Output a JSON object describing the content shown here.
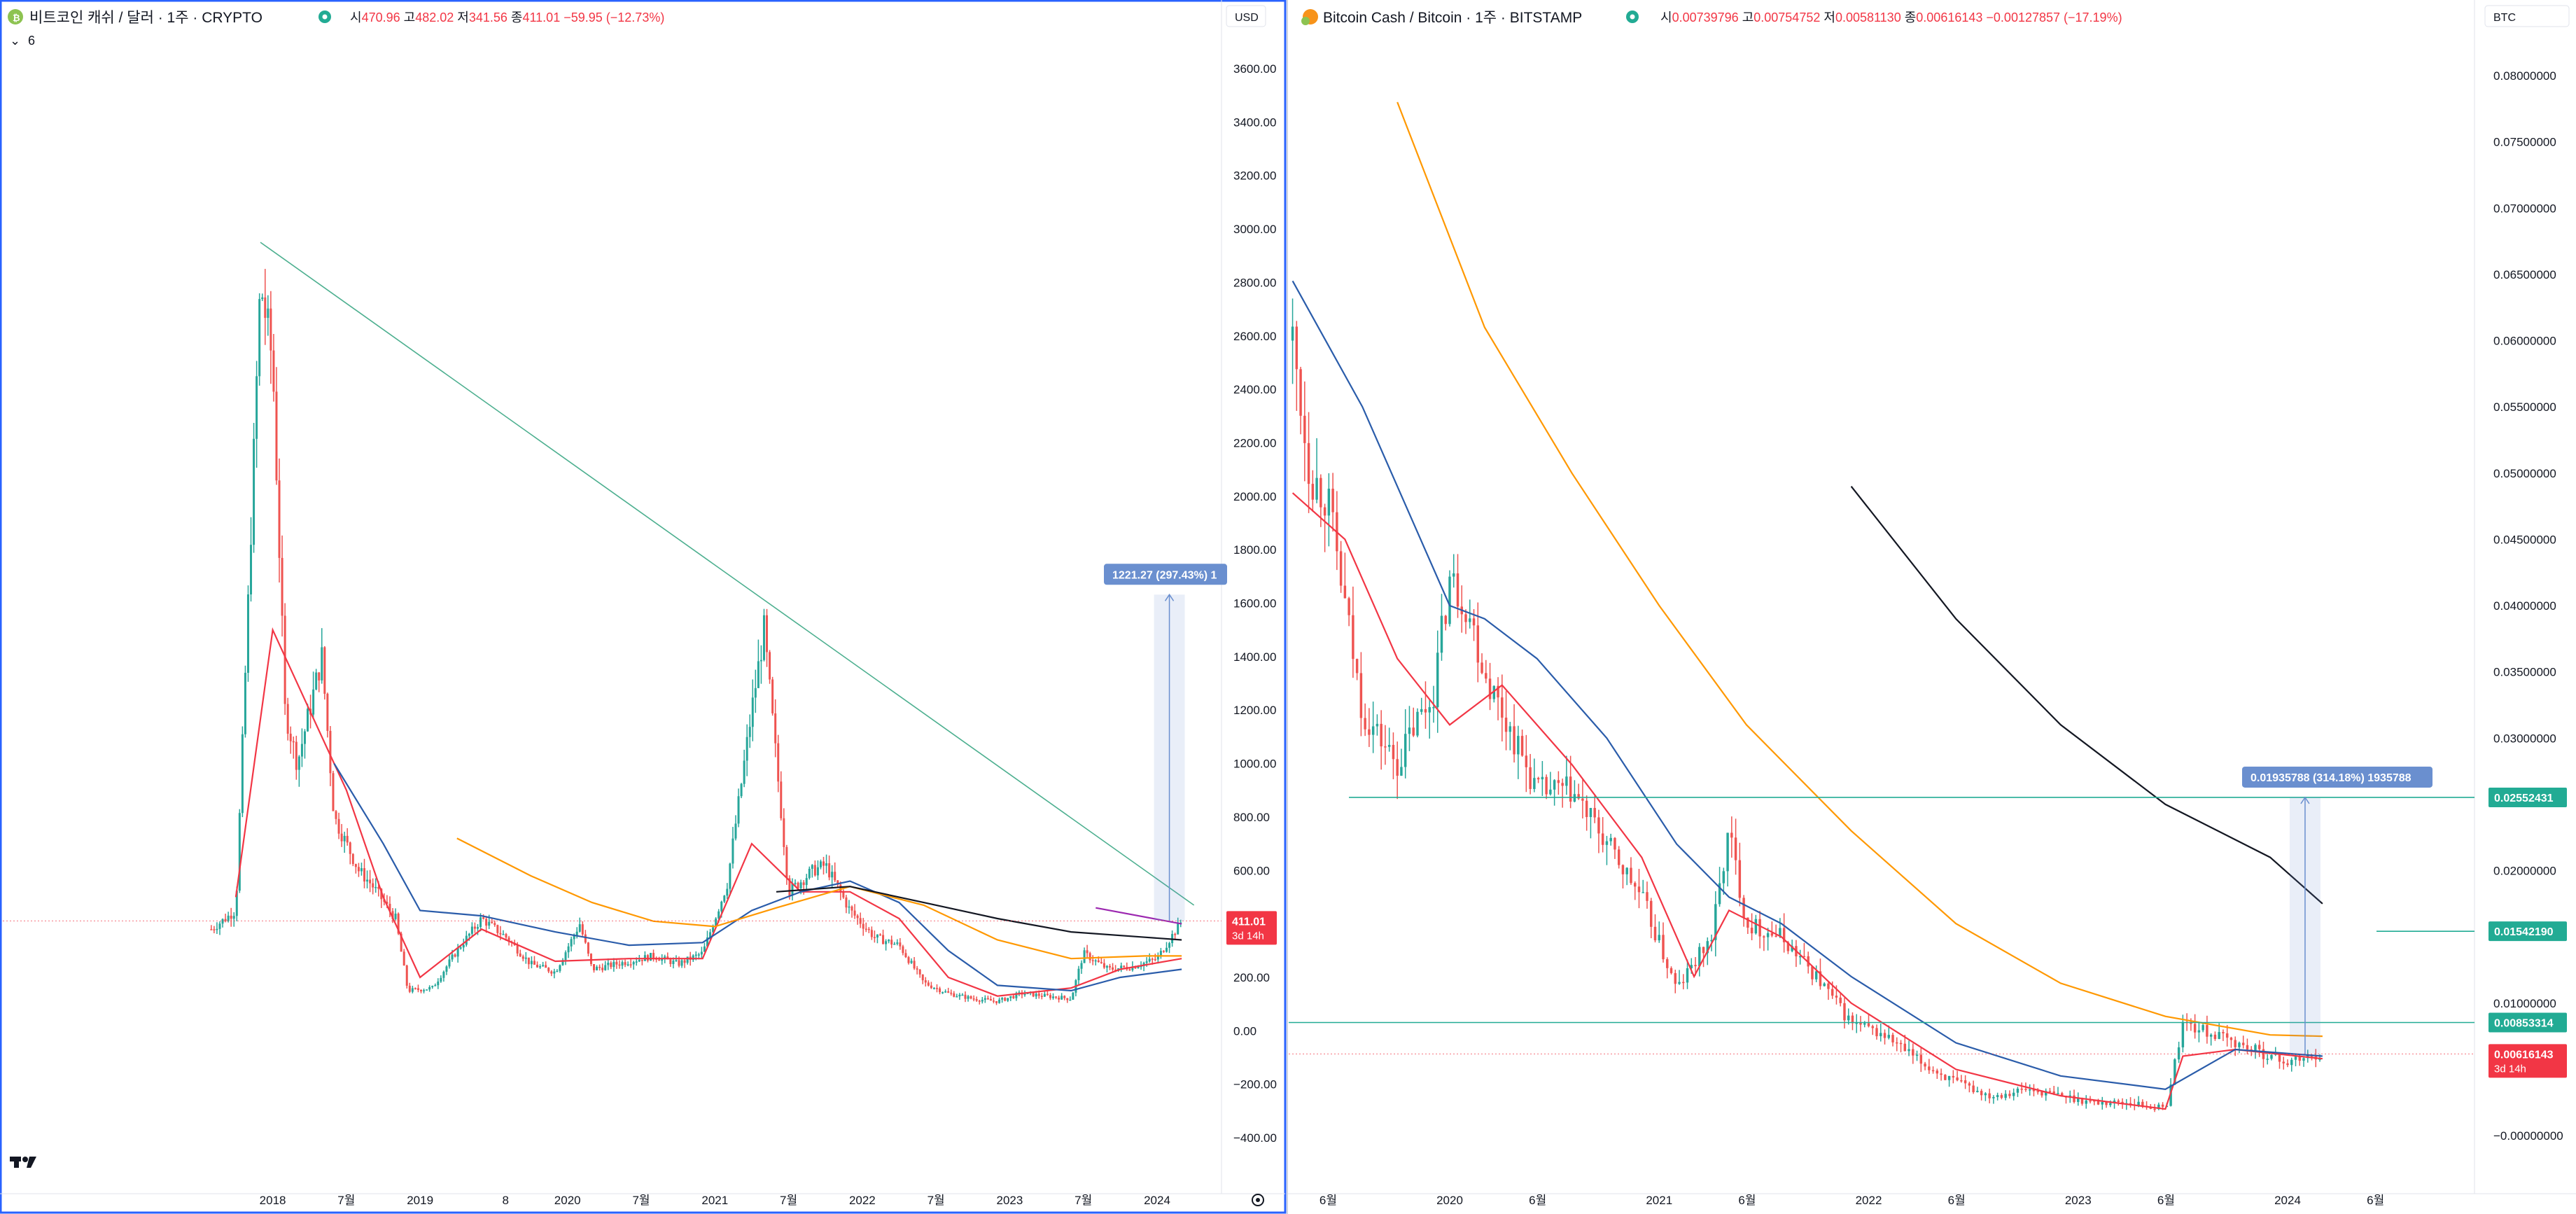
{
  "left_panel": {
    "symbol_title": "비트코인 캐쉬 / 달러 · 1주 · CRYPTO",
    "ohlc": {
      "o_label": "시",
      "o": "470.96",
      "h_label": "고",
      "h": "482.02",
      "l_label": "저",
      "l": "341.56",
      "c_label": "종",
      "c": "411.01",
      "change": "−59.95 (−12.73%)"
    },
    "indicator_count": "6",
    "currency": "USD",
    "last_price_badge": "411.01",
    "last_price_time": "3d 14h",
    "measure_label": "1221.27 (297.43%) 1"
  },
  "right_panel": {
    "symbol_title": "Bitcoin Cash / Bitcoin · 1주 · BITSTAMP",
    "ohlc": {
      "o_label": "시",
      "o": "0.00739796",
      "h_label": "고",
      "h": "0.00754752",
      "l_label": "저",
      "l": "0.00581130",
      "c_label": "종",
      "c": "0.00616143",
      "change": "−0.00127857 (−17.19%)"
    },
    "currency": "BTC",
    "last_price_badge": "0.00616143",
    "last_price_time": "3d 14h",
    "level_badges": [
      "0.02552431",
      "0.01542190",
      "0.00853314"
    ],
    "measure_label": "0.01935788 (314.18%) 1935788"
  },
  "colors": {
    "up": "#26a69a",
    "down": "#ef5350",
    "ma_red": "#f23645",
    "ma_blue": "#2a5caa",
    "ma_orange": "#ff9800",
    "ma_black": "#131722",
    "ma_purple": "#9c27b0",
    "trendline": "#4caf8f",
    "badge_red": "#f23645",
    "badge_green": "#22ab94",
    "measure": "#6a8fcf",
    "frame": "#2962ff"
  },
  "chart_data": [
    {
      "type": "candlestick",
      "title": "비트코인 캐쉬 / 달러 · 1주 · CRYPTO",
      "xlabel": "",
      "ylabel": "",
      "x_ticks": [
        "2018",
        "7월",
        "2019",
        "8",
        "2020",
        "7월",
        "2021",
        "7월",
        "2022",
        "7월",
        "2023",
        "7월",
        "2024"
      ],
      "y_ticks": [
        "3600.00",
        "3400.00",
        "3200.00",
        "3000.00",
        "2800.00",
        "2600.00",
        "2400.00",
        "2200.00",
        "2000.00",
        "1800.00",
        "1600.00",
        "1400.00",
        "1200.00",
        "1000.00",
        "800.00",
        "600.00",
        "200.00",
        "0.00",
        "−200.00",
        "−400.00"
      ],
      "ylim": [
        -500,
        3750
      ],
      "grid": false,
      "series": [
        {
          "name": "",
          "kind": "ohlc_close_path",
          "x": [
            "2017-08",
            "2017-10",
            "2017-11",
            "2017-12",
            "2018-01",
            "2018-02",
            "2018-03",
            "2018-05",
            "2018-06",
            "2018-08",
            "2018-09",
            "2018-11",
            "2018-12",
            "2019-02",
            "2019-04",
            "2019-06",
            "2019-08",
            "2019-10",
            "2019-12",
            "2020-02",
            "2020-03",
            "2020-05",
            "2020-08",
            "2020-10",
            "2020-12",
            "2021-02",
            "2021-04",
            "2021-05",
            "2021-07",
            "2021-09",
            "2021-10",
            "2021-12",
            "2022-02",
            "2022-04",
            "2022-06",
            "2022-08",
            "2022-10",
            "2022-12",
            "2023-02",
            "2023-04",
            "2023-06",
            "2023-07",
            "2023-09",
            "2023-11",
            "2024-01",
            "2024-03"
          ],
          "y": [
            380,
            450,
            1600,
            2800,
            2500,
            1200,
            1000,
            1400,
            800,
            600,
            550,
            420,
            150,
            160,
            300,
            420,
            350,
            250,
            220,
            400,
            230,
            250,
            280,
            250,
            290,
            550,
            1200,
            1500,
            520,
            600,
            620,
            450,
            350,
            320,
            180,
            140,
            120,
            110,
            140,
            130,
            120,
            290,
            230,
            240,
            270,
            411
          ]
        },
        {
          "name": "",
          "kind": "ma_red",
          "x": [
            "2017-10",
            "2018-01",
            "2018-04",
            "2018-07",
            "2018-10",
            "2019-01",
            "2019-06",
            "2019-12",
            "2020-06",
            "2020-12",
            "2021-04",
            "2021-08",
            "2021-12",
            "2022-04",
            "2022-08",
            "2022-12",
            "2023-06",
            "2023-10",
            "2024-03"
          ],
          "y": [
            500,
            1500,
            1200,
            900,
            500,
            200,
            380,
            260,
            270,
            270,
            700,
            520,
            520,
            420,
            200,
            130,
            160,
            230,
            270
          ]
        },
        {
          "name": "",
          "kind": "ma_blue",
          "x": [
            "2018-06",
            "2018-10",
            "2019-01",
            "2019-06",
            "2019-12",
            "2020-06",
            "2020-12",
            "2021-04",
            "2021-08",
            "2021-12",
            "2022-04",
            "2022-08",
            "2022-12",
            "2023-06",
            "2023-10",
            "2024-03"
          ],
          "y": [
            1000,
            700,
            450,
            430,
            370,
            320,
            330,
            450,
            520,
            560,
            480,
            300,
            170,
            150,
            200,
            230
          ]
        },
        {
          "name": "",
          "kind": "ma_orange",
          "x": [
            "2019-04",
            "2019-10",
            "2020-03",
            "2020-08",
            "2021-01",
            "2021-06",
            "2021-12",
            "2022-06",
            "2022-12",
            "2023-06",
            "2023-12",
            "2024-03"
          ],
          "y": [
            720,
            580,
            480,
            410,
            390,
            460,
            540,
            470,
            340,
            270,
            280,
            280
          ]
        },
        {
          "name": "",
          "kind": "ma_black",
          "x": [
            "2021-06",
            "2021-12",
            "2022-06",
            "2022-12",
            "2023-06",
            "2023-12",
            "2024-03"
          ],
          "y": [
            520,
            540,
            480,
            420,
            370,
            350,
            340
          ]
        },
        {
          "name": "",
          "kind": "ma_purple",
          "x": [
            "2023-08",
            "2024-03"
          ],
          "y": [
            460,
            400
          ]
        }
      ],
      "trendline": {
        "x": [
          "2017-12",
          "2024-04"
        ],
        "y": [
          2950,
          470
        ]
      },
      "measure": {
        "x": "2024-02",
        "y_from": 411,
        "y_to": 1632,
        "label": "1221.27 (297.43%) 1"
      },
      "last_price": 411.01
    },
    {
      "type": "candlestick",
      "title": "Bitcoin Cash / Bitcoin · 1주 · BITSTAMP",
      "xlabel": "",
      "ylabel": "",
      "x_ticks": [
        "6월",
        "2020",
        "6월",
        "2021",
        "6월",
        "2022",
        "6월",
        "2023",
        "6월",
        "2024",
        "6월"
      ],
      "y_ticks": [
        "0.08000000",
        "0.07500000",
        "0.07000000",
        "0.06500000",
        "0.06000000",
        "0.05500000",
        "0.05000000",
        "0.04500000",
        "0.04000000",
        "0.03500000",
        "0.03000000",
        "0.02000000",
        "0.01000000",
        "−0.00000000"
      ],
      "ylim": [
        -0.0015,
        0.082
      ],
      "grid": false,
      "series": [
        {
          "name": "",
          "kind": "ohlc_close_path",
          "x": [
            "2019-04",
            "2019-05",
            "2019-06",
            "2019-07",
            "2019-08",
            "2019-09",
            "2019-10",
            "2019-11",
            "2019-12",
            "2020-01",
            "2020-02",
            "2020-03",
            "2020-04",
            "2020-06",
            "2020-08",
            "2020-10",
            "2020-12",
            "2021-02",
            "2021-04",
            "2021-05",
            "2021-06",
            "2021-08",
            "2021-10",
            "2021-12",
            "2022-02",
            "2022-04",
            "2022-06",
            "2022-08",
            "2022-10",
            "2022-12",
            "2023-02",
            "2023-04",
            "2023-06",
            "2023-07",
            "2023-09",
            "2023-11",
            "2024-01",
            "2024-03"
          ],
          "y": [
            0.06,
            0.05,
            0.048,
            0.04,
            0.032,
            0.03,
            0.028,
            0.031,
            0.033,
            0.042,
            0.04,
            0.035,
            0.032,
            0.026,
            0.026,
            0.022,
            0.018,
            0.011,
            0.015,
            0.023,
            0.016,
            0.015,
            0.012,
            0.0085,
            0.0075,
            0.0055,
            0.004,
            0.003,
            0.0035,
            0.003,
            0.0025,
            0.0025,
            0.002,
            0.0085,
            0.0075,
            0.0065,
            0.0055,
            0.0062
          ]
        },
        {
          "name": "",
          "kind": "ma_red",
          "x": [
            "2019-04",
            "2019-07",
            "2019-10",
            "2020-01",
            "2020-04",
            "2020-08",
            "2020-12",
            "2021-03",
            "2021-05",
            "2021-08",
            "2021-12",
            "2022-06",
            "2022-12",
            "2023-06",
            "2023-07",
            "2023-10",
            "2024-03"
          ],
          "y": [
            0.0485,
            0.045,
            0.036,
            0.031,
            0.034,
            0.028,
            0.021,
            0.012,
            0.017,
            0.015,
            0.01,
            0.005,
            0.003,
            0.002,
            0.006,
            0.0065,
            0.0058
          ]
        },
        {
          "name": "",
          "kind": "ma_blue",
          "x": [
            "2019-04",
            "2019-08",
            "2020-01",
            "2020-03",
            "2020-06",
            "2020-10",
            "2021-02",
            "2021-05",
            "2021-08",
            "2021-12",
            "2022-06",
            "2022-12",
            "2023-06",
            "2023-10",
            "2024-03"
          ],
          "y": [
            0.0645,
            0.055,
            0.04,
            0.039,
            0.036,
            0.03,
            0.022,
            0.018,
            0.016,
            0.012,
            0.007,
            0.0045,
            0.0035,
            0.0065,
            0.006
          ]
        },
        {
          "name": "",
          "kind": "ma_orange",
          "x": [
            "2019-10",
            "2020-03",
            "2020-08",
            "2021-01",
            "2021-06",
            "2021-12",
            "2022-06",
            "2022-12",
            "2023-06",
            "2023-12",
            "2024-03"
          ],
          "y": [
            0.078,
            0.061,
            0.05,
            0.04,
            0.031,
            0.023,
            0.016,
            0.0115,
            0.009,
            0.0076,
            0.0075
          ]
        },
        {
          "name": "",
          "kind": "ma_black",
          "x": [
            "2021-12",
            "2022-06",
            "2022-12",
            "2023-06",
            "2023-12",
            "2024-03"
          ],
          "y": [
            0.049,
            0.039,
            0.031,
            0.025,
            0.021,
            0.0175
          ]
        }
      ],
      "levels": [
        0.02552431,
        0.0154219,
        0.00853314
      ],
      "measure": {
        "x": "2024-02",
        "y_from": 0.00616143,
        "y_to": 0.02552431,
        "label": "0.01935788 (314.18%) 1935788"
      },
      "last_price": 0.00616143
    }
  ]
}
